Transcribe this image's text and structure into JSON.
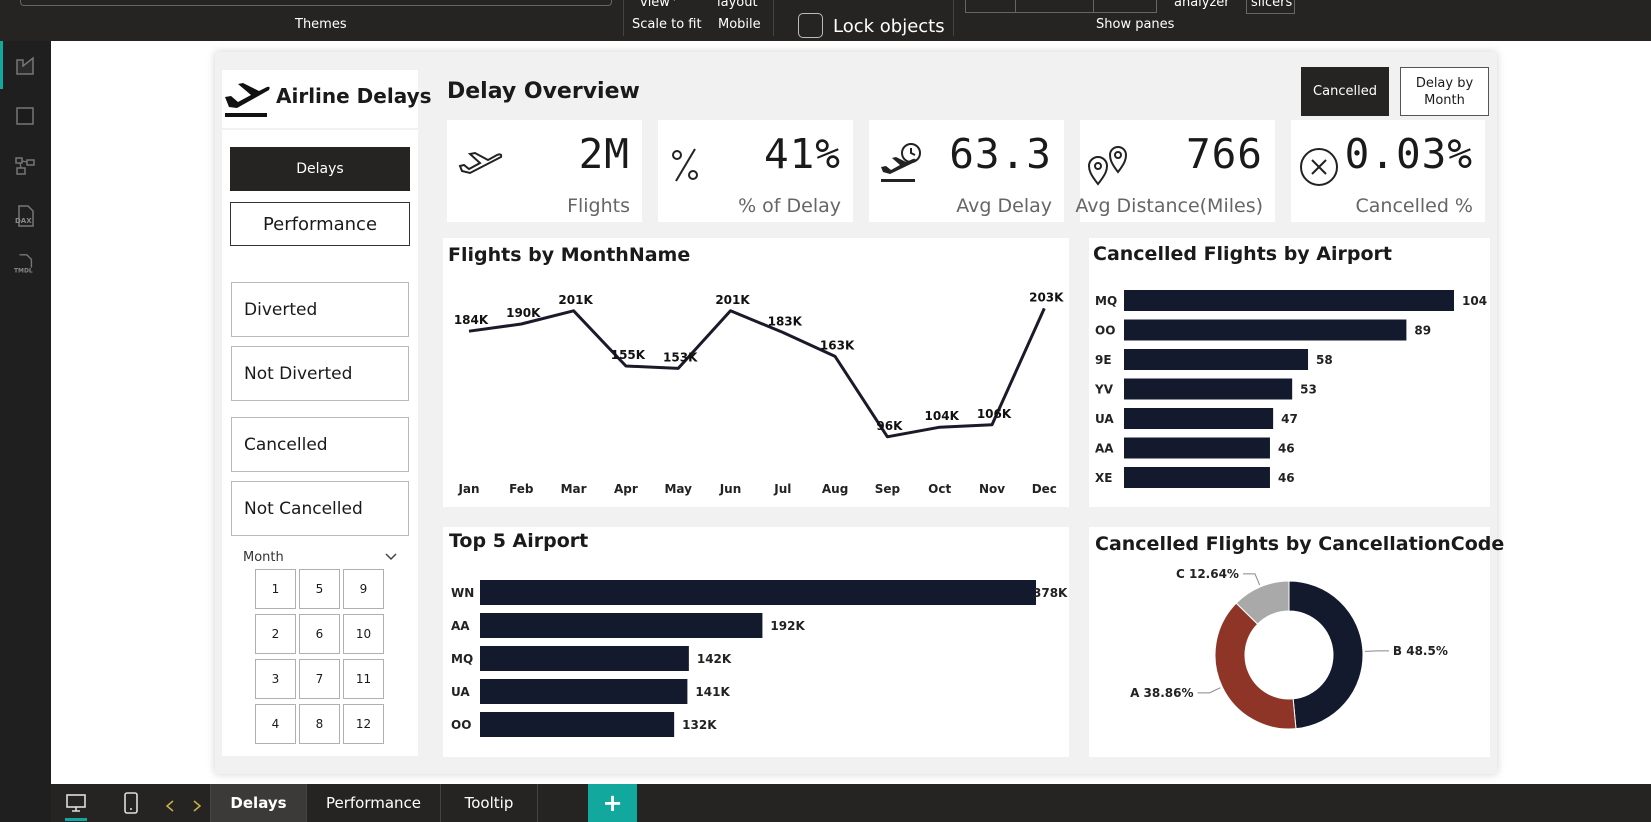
{
  "ribbon": {
    "themes": "Themes",
    "view": "view",
    "scale_to_fit": "Scale to fit",
    "layout": "layout",
    "mobile": "Mobile",
    "lock_objects": "Lock objects",
    "analyzer": "analyzer",
    "slicers": "slicers",
    "show_panes": "Show panes"
  },
  "rail": {
    "icons": [
      "report-view-icon",
      "table-view-icon",
      "model-view-icon",
      "dax-query-icon",
      "tmdl-view-icon"
    ],
    "dax": "DAX",
    "tmdl": "TMDL"
  },
  "brand": {
    "title": "Airline Delays",
    "icon": "airplane-departure-icon"
  },
  "nav": {
    "delays": "Delays",
    "performance": "Performance"
  },
  "slicers": [
    "Diverted",
    "Not Diverted",
    "Cancelled",
    "Not Cancelled"
  ],
  "month_slicer": {
    "title": "Month",
    "values": [
      "1",
      "5",
      "9",
      "2",
      "6",
      "10",
      "3",
      "7",
      "11",
      "4",
      "8",
      "12"
    ]
  },
  "page": {
    "title": "Delay Overview"
  },
  "top_buttons": {
    "cancelled": "Cancelled",
    "delay_by_month": "Delay by Month"
  },
  "kpis": [
    {
      "value": "2M",
      "label": "Flights",
      "icon": "airplane-icon"
    },
    {
      "value": "41%",
      "label": "% of Delay",
      "icon": "percent-icon"
    },
    {
      "value": "63.3",
      "label": "Avg Delay",
      "icon": "plane-clock-icon"
    },
    {
      "value": "766",
      "label": "Avg Distance(Miles)",
      "icon": "map-pins-icon"
    },
    {
      "value": "0.03%",
      "label": "Cancelled %",
      "icon": "cancel-circle-icon"
    }
  ],
  "chart_data": [
    {
      "type": "line",
      "title": "Flights by MonthName",
      "categories": [
        "Jan",
        "Feb",
        "Mar",
        "Apr",
        "May",
        "Jun",
        "Jul",
        "Aug",
        "Sep",
        "Oct",
        "Nov",
        "Dec"
      ],
      "values": [
        184000,
        190000,
        201000,
        155000,
        153000,
        201000,
        183000,
        163000,
        96000,
        104000,
        106000,
        203000
      ],
      "data_labels": [
        "184K",
        "190K",
        "201K",
        "155K",
        "153K",
        "201K",
        "183K",
        "163K",
        "96K",
        "104K",
        "106K",
        "203K"
      ],
      "color": "#1a1a2a"
    },
    {
      "type": "bar",
      "orientation": "horizontal",
      "title": "Cancelled Flights by Airport",
      "categories": [
        "MQ",
        "OO",
        "9E",
        "YV",
        "UA",
        "AA",
        "XE"
      ],
      "values": [
        104,
        89,
        58,
        53,
        47,
        46,
        46
      ],
      "data_labels": [
        "104",
        "89",
        "58",
        "53",
        "47",
        "46",
        "46"
      ],
      "color": "#141a2e"
    },
    {
      "type": "bar",
      "orientation": "horizontal",
      "title": "Top 5 Airport",
      "categories": [
        "WN",
        "AA",
        "MQ",
        "UA",
        "OO"
      ],
      "values": [
        378000,
        192000,
        142000,
        141000,
        132000
      ],
      "data_labels": [
        "378K",
        "192K",
        "142K",
        "141K",
        "132K"
      ],
      "color": "#141a2e"
    },
    {
      "type": "pie",
      "title": "Cancelled Flights by CancellationCode",
      "categories": [
        "B",
        "A",
        "C"
      ],
      "values": [
        48.5,
        38.86,
        12.64
      ],
      "data_labels": [
        "B 48.5%",
        "A 38.86%",
        "C 12.64%"
      ],
      "colors": [
        "#141a2e",
        "#8e3528",
        "#a9a9a9"
      ]
    }
  ],
  "tabs": {
    "items": [
      "Delays",
      "Performance",
      "Tooltip"
    ],
    "add": "+"
  },
  "colors": {
    "dark": "#252423",
    "accent": "#13a89e",
    "card_dark": "#252423"
  }
}
